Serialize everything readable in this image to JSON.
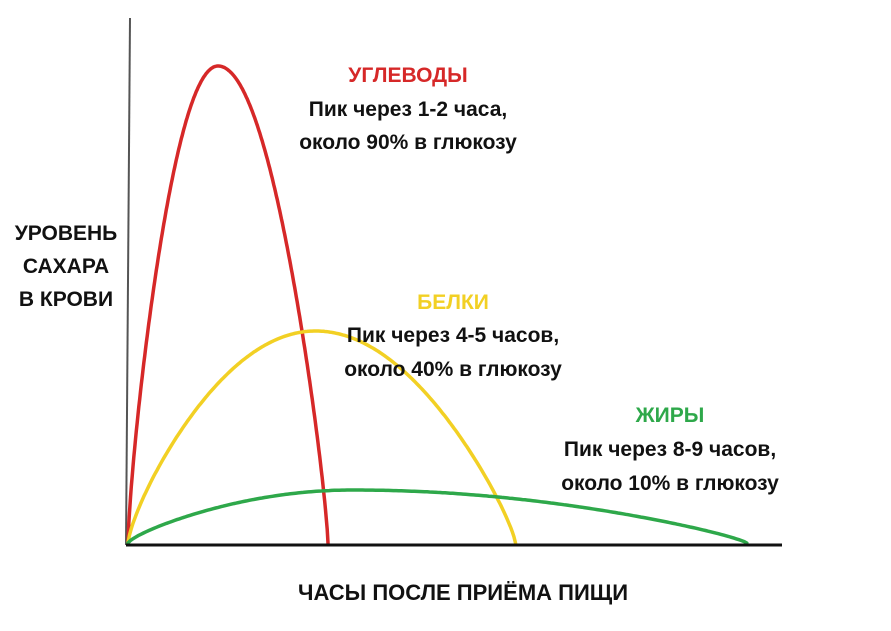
{
  "chart_data": {
    "type": "line",
    "ylabel_lines": [
      "УРОВЕНЬ",
      "САХАРА",
      "В КРОВИ"
    ],
    "xlabel": "ЧАСЫ ПОСЛЕ ПРИЁМА ПИЩИ",
    "grid": false,
    "legend": "none",
    "series": [
      {
        "name": "УГЛЕВОДЫ",
        "color": "#d62828",
        "line1": "Пик через 1-2 часа,",
        "line2": "около 90% в глюкозу",
        "end": 1.6,
        "peak_x": 0.72,
        "peak_y": 0.9
      },
      {
        "name": "БЕЛКИ",
        "color": "#f2d024",
        "line1": "Пик через 4-5 часов,",
        "line2": "около 40% в глюкозу",
        "end": 3.1,
        "peak_x": 1.5,
        "peak_y": 0.4
      },
      {
        "name": "ЖИРЫ",
        "color": "#2ea84a",
        "line1": "Пик через 8-9 часов,",
        "line2": "около 10% в глюкозу",
        "end": 4.95,
        "peak_x": 1.8,
        "peak_y": 0.1
      }
    ]
  }
}
